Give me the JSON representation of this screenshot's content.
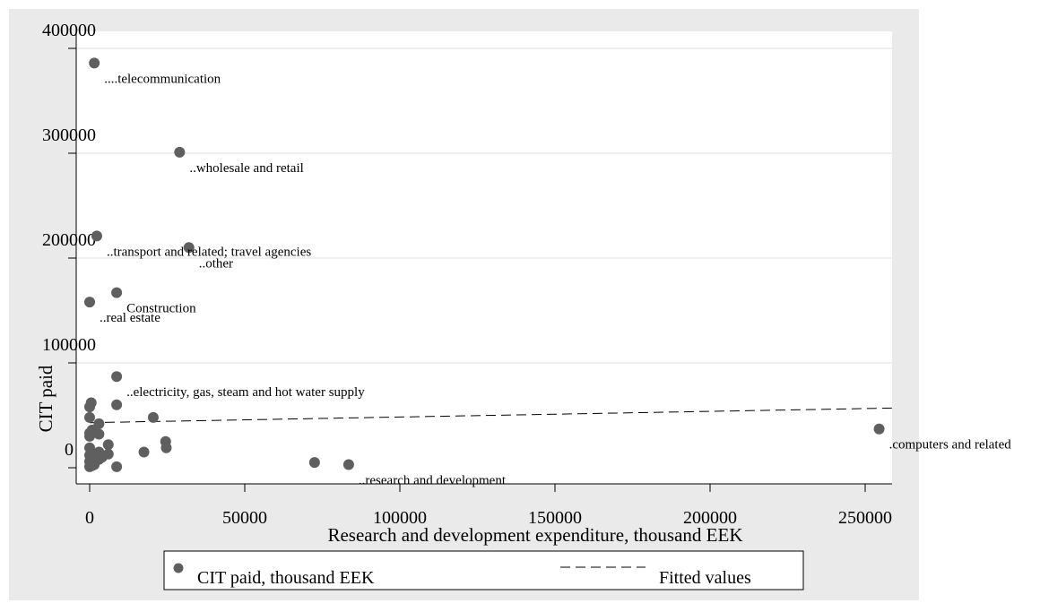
{
  "chart_data": {
    "type": "scatter",
    "xlabel": "Research and development expenditure, thousand EEK",
    "ylabel": "CIT paid",
    "xlim": [
      0,
      260000
    ],
    "ylim": [
      0,
      400000
    ],
    "xticks": [
      "0",
      "50000",
      "100000",
      "150000",
      "200000",
      "250000"
    ],
    "xtick_values": [
      0,
      50000,
      100000,
      150000,
      200000,
      250000
    ],
    "yticks": [
      "0",
      "100000",
      "200000",
      "300000",
      "400000"
    ],
    "ytick_values": [
      0,
      100000,
      200000,
      300000,
      400000
    ],
    "grid": "horizontal",
    "legend_position": "bottom",
    "series": [
      {
        "name": "CIT paid, thousand EEK",
        "marker": "circle",
        "color": "#5f5f5f",
        "points": [
          {
            "x": 1500,
            "y": 386000,
            "label": "....telecommunication"
          },
          {
            "x": 29000,
            "y": 301000,
            "label": "..wholesale and retail"
          },
          {
            "x": 2300,
            "y": 221000,
            "label": "..transport and related; travel agencies"
          },
          {
            "x": 32000,
            "y": 210000,
            "label": "..other"
          },
          {
            "x": 8700,
            "y": 167000,
            "label": "Construction"
          },
          {
            "x": 0,
            "y": 158000,
            "label": "..real estate"
          },
          {
            "x": 8700,
            "y": 87000,
            "label": "..electricity, gas, steam and hot water supply"
          },
          {
            "x": 254500,
            "y": 37000,
            "label": ".computers and related"
          },
          {
            "x": 83500,
            "y": 3000,
            "label": "..research and development"
          },
          {
            "x": 72500,
            "y": 5000
          },
          {
            "x": 20500,
            "y": 48000
          },
          {
            "x": 8700,
            "y": 60000
          },
          {
            "x": 24500,
            "y": 25000
          },
          {
            "x": 24700,
            "y": 19000
          },
          {
            "x": 17500,
            "y": 15000
          },
          {
            "x": 8700,
            "y": 1000
          },
          {
            "x": 6000,
            "y": 22000
          },
          {
            "x": 6000,
            "y": 13000
          },
          {
            "x": 3000,
            "y": 42000
          },
          {
            "x": 3000,
            "y": 32000
          },
          {
            "x": 3000,
            "y": 15000
          },
          {
            "x": 3000,
            "y": 8000
          },
          {
            "x": 2000,
            "y": 12000
          },
          {
            "x": 1500,
            "y": 6000
          },
          {
            "x": 500,
            "y": 62000
          },
          {
            "x": 0,
            "y": 58000
          },
          {
            "x": 0,
            "y": 48000
          },
          {
            "x": 800,
            "y": 36000
          },
          {
            "x": 0,
            "y": 33000
          },
          {
            "x": 0,
            "y": 30000
          },
          {
            "x": 0,
            "y": 19000
          },
          {
            "x": 0,
            "y": 12000
          },
          {
            "x": 0,
            "y": 6000
          },
          {
            "x": 500,
            "y": 4000
          },
          {
            "x": 800,
            "y": 2000
          },
          {
            "x": 0,
            "y": 1000
          },
          {
            "x": 1500,
            "y": 3000
          },
          {
            "x": 4000,
            "y": 10000
          }
        ]
      },
      {
        "name": "Fitted values",
        "type": "line",
        "style": "dashed",
        "color": "#000000",
        "x": [
          0,
          260000
        ],
        "y": [
          43000,
          57000
        ]
      }
    ]
  }
}
